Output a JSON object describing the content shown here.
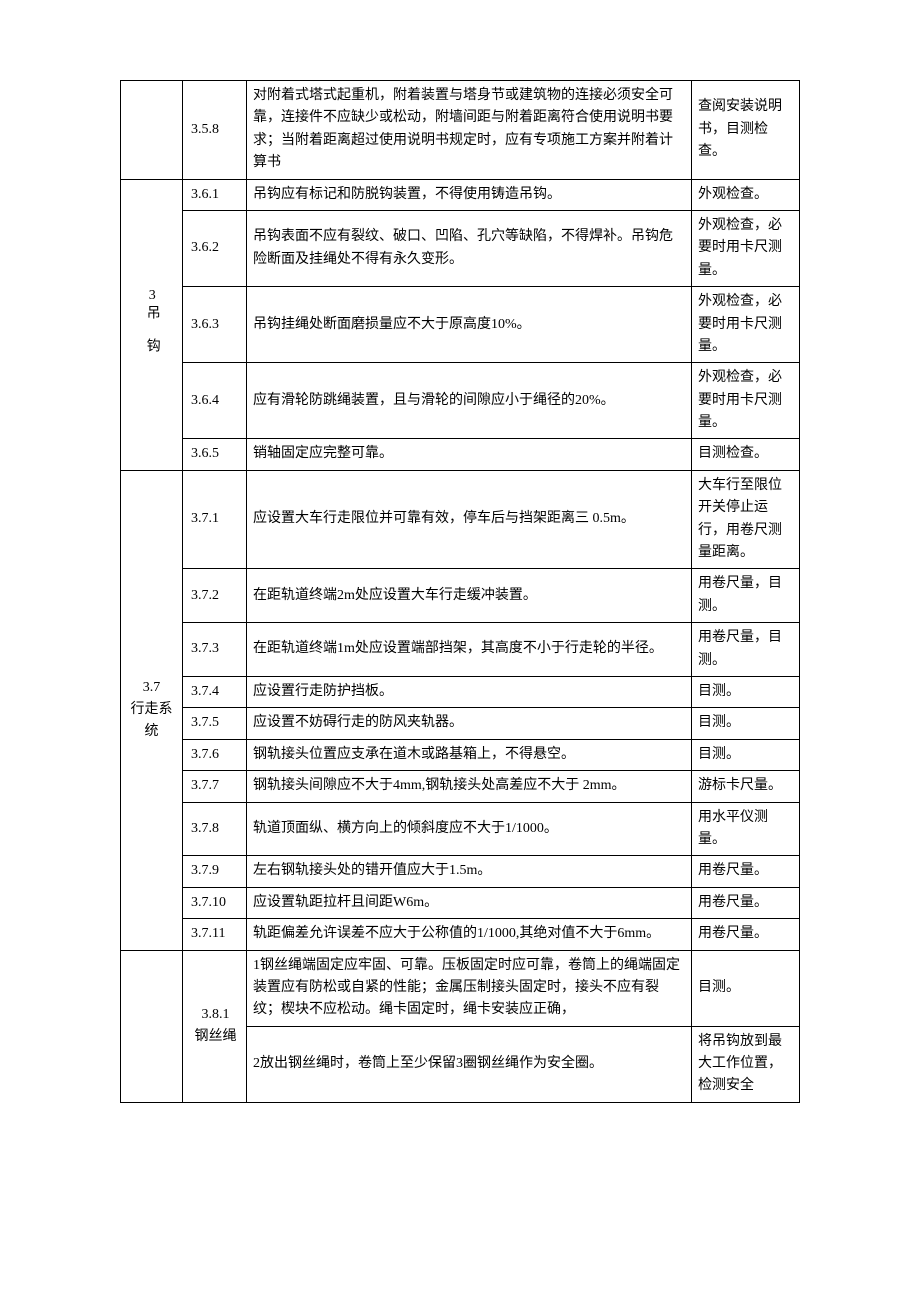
{
  "table": {
    "columns": {
      "section_width": 62,
      "num_width": 64,
      "method_width": 108
    },
    "border_color": "#000000",
    "background_color": "#ffffff",
    "font_size": 14,
    "line_height": 1.6,
    "rows": [
      {
        "section": "",
        "num": "3.5.8",
        "req": "对附着式塔式起重机，附着装置与塔身节或建筑物的连接必须安全可靠，连接件不应缺少或松动，附墙间距与附着距离符合使用说明书要求；当附着距离超过使用说明书规定时，应有专项施工方案并附着计算书",
        "method": "查阅安装说明书，目测检查。"
      },
      {
        "section": "3吊 钩",
        "num": "3.6.1",
        "req": "吊钩应有标记和防脱钩装置，不得使用铸造吊钩。",
        "method": "外观检查。"
      },
      {
        "section": "",
        "num": "3.6.2",
        "req": "吊钩表面不应有裂纹、破口、凹陷、孔穴等缺陷，不得焊补。吊钩危险断面及挂绳处不得有永久变形。",
        "method": "外观检查，必要时用卡尺测量。"
      },
      {
        "section": "",
        "num": "3.6.3",
        "req": "吊钩挂绳处断面磨损量应不大于原高度10%。",
        "method": "外观检查，必要时用卡尺测量。"
      },
      {
        "section": "",
        "num": "3.6.4",
        "req": "应有滑轮防跳绳装置，且与滑轮的间隙应小于绳径的20%。",
        "method": "外观检查，必要时用卡尺测量。"
      },
      {
        "section": "",
        "num": "3.6.5",
        "req": "销轴固定应完整可靠。",
        "method": "目测检查。"
      },
      {
        "section": "3.7\n行走系统",
        "num": "3.7.1",
        "req": "应设置大车行走限位并可靠有效，停车后与挡架距离三 0.5m。",
        "method": "大车行至限位开关停止运行，用卷尺测量距离。"
      },
      {
        "section": "",
        "num": "3.7.2",
        "req": "在距轨道终端2m处应设置大车行走缓冲装置。",
        "method": "用卷尺量，目测。"
      },
      {
        "section": "",
        "num": "3.7.3",
        "req": "在距轨道终端1m处应设置端部挡架，其高度不小于行走轮的半径。",
        "method": "用卷尺量，目测。"
      },
      {
        "section": "",
        "num": "3.7.4",
        "req": "应设置行走防护挡板。",
        "method": "目测。"
      },
      {
        "section": "",
        "num": "3.7.5",
        "req": "应设置不妨碍行走的防风夹轨器。",
        "method": "目测。"
      },
      {
        "section": "",
        "num": "3.7.6",
        "req": "钢轨接头位置应支承在道木或路基箱上，不得悬空。",
        "method": "目测。"
      },
      {
        "section": "",
        "num": "3.7.7",
        "req": "钢轨接头间隙应不大于4mm,钢轨接头处高差应不大于 2mm。",
        "method": "游标卡尺量。"
      },
      {
        "section": "",
        "num": "3.7.8",
        "req": "轨道顶面纵、横方向上的倾斜度应不大于1/1000。",
        "method": "用水平仪测量。"
      },
      {
        "section": "",
        "num": "3.7.9",
        "req": "左右钢轨接头处的错开值应大于1.5m。",
        "method": "用卷尺量。"
      },
      {
        "section": "",
        "num": "3.7.10",
        "req": "应设置轨距拉杆且间距W6m。",
        "method": "用卷尺量。"
      },
      {
        "section": "",
        "num": "3.7.11",
        "req": "轨距偏差允许误差不应大于公称值的1/1000,其绝对值不大于6mm。",
        "method": "用卷尺量。"
      },
      {
        "section": "3.8.1\n钢丝绳",
        "num": "3.8.1\n钢丝绳",
        "req": "1钢丝绳端固定应牢固、可靠。压板固定时应可靠，卷筒上的绳端固定装置应有防松或自紧的性能；金属压制接头固定时，接头不应有裂纹；楔块不应松动。绳卡固定时，绳卡安装应正确，",
        "method": "目测。"
      },
      {
        "section": "",
        "num": "",
        "req": "2放出钢丝绳时，卷筒上至少保留3圈钢丝绳作为安全圈。",
        "method": "将吊钩放到最大工作位置，检测安全"
      }
    ],
    "sections": {
      "s35": {
        "label": "",
        "rowspan": 1
      },
      "s36": {
        "label_vertical": "3吊 钩",
        "rowspan": 5
      },
      "s37": {
        "label_line1": "3.7",
        "label_line2": "行走系统",
        "rowspan": 11
      },
      "s38": {
        "label_line1": "3.8.1",
        "label_line2": "钢丝绳",
        "rowspan": 2,
        "num_rowspan": 2
      }
    }
  }
}
